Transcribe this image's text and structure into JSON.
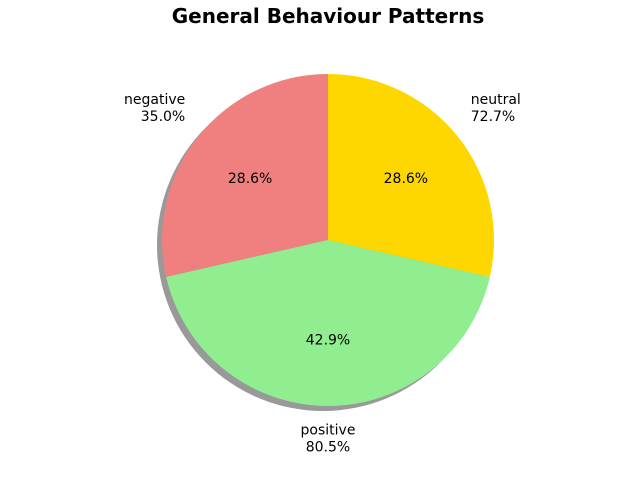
{
  "chart_data": {
    "type": "pie",
    "title": "General Behaviour Patterns",
    "start_angle_deg": 90,
    "direction": "counterclockwise",
    "shadow": true,
    "slices": [
      {
        "label": "negative",
        "sublabel": "35.0%",
        "pct_label": "28.6%",
        "value": 28.6,
        "color": "#f08080"
      },
      {
        "label": "positive",
        "sublabel": "80.5%",
        "pct_label": "42.9%",
        "value": 42.9,
        "color": "#90ee90"
      },
      {
        "label": "neutral",
        "sublabel": "72.7%",
        "pct_label": "28.6%",
        "value": 28.6,
        "color": "#ffd700"
      }
    ]
  }
}
